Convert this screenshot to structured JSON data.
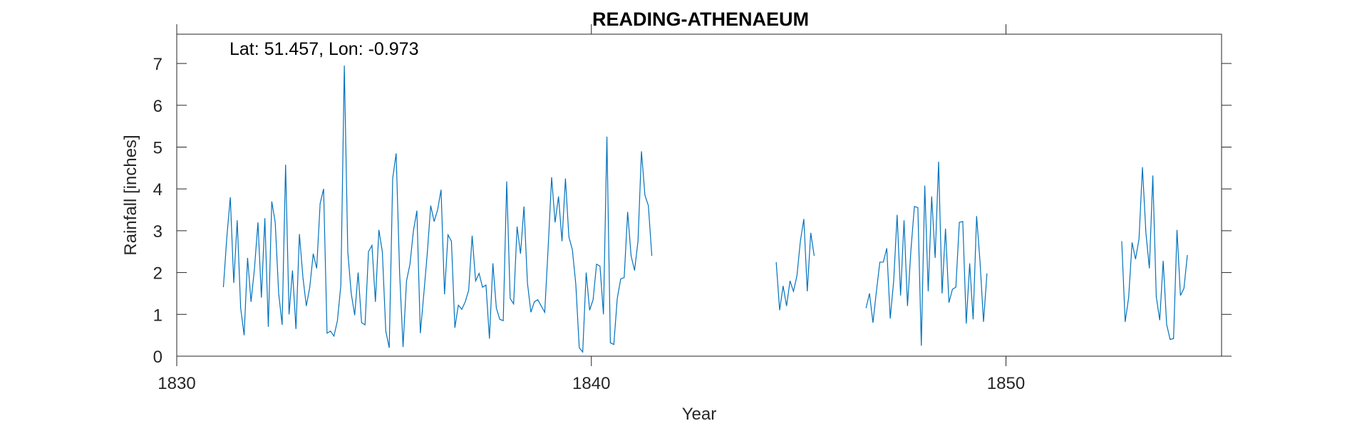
{
  "chart_data": {
    "type": "line",
    "title": "READING-ATHENAEUM",
    "annotation": "Lat: 51.457, Lon: -0.973",
    "xlabel": "Year",
    "ylabel": "Rainfall [inches]",
    "xlim": [
      1830,
      1855.2
    ],
    "ylim": [
      0,
      7.7
    ],
    "xticks": [
      1830,
      1840,
      1850
    ],
    "xtick_labels": [
      "1830",
      "1840",
      "1850"
    ],
    "yticks": [
      0,
      1,
      2,
      3,
      4,
      5,
      6,
      7
    ],
    "ytick_labels": [
      "0",
      "1",
      "2",
      "3",
      "4",
      "5",
      "6",
      "7"
    ],
    "grid": false,
    "line_color": "#0072BD",
    "series": [
      {
        "segments": [
          {
            "start": 1831.125,
            "values": [
              1.65,
              2.85,
              3.8,
              1.75,
              3.25,
              1.15,
              0.5,
              2.35,
              1.3,
              2.1,
              3.2,
              1.4,
              3.3,
              0.7,
              3.7,
              3.2,
              1.5,
              0.75,
              4.58,
              1.0,
              2.05,
              0.65,
              2.92,
              1.9,
              1.2,
              1.65,
              2.45,
              2.1,
              3.65,
              4.0,
              0.55,
              0.6,
              0.48,
              0.85,
              1.7,
              6.95,
              2.5,
              1.5,
              0.98,
              2.0,
              0.8,
              0.75,
              2.5,
              2.65,
              1.3,
              3.02,
              2.5,
              0.6,
              0.2,
              4.25,
              4.85,
              2.0,
              0.22,
              1.8,
              2.2,
              3.0,
              3.48,
              0.55,
              1.48,
              2.45,
              3.6,
              3.22,
              3.5,
              3.98,
              1.48,
              2.9,
              2.75,
              0.68,
              1.22,
              1.12,
              1.3,
              1.58,
              2.88,
              1.8,
              1.98,
              1.65,
              1.7,
              0.42,
              2.22,
              1.15,
              0.88,
              0.85,
              4.18,
              1.38,
              1.25,
              3.1,
              2.45,
              3.58,
              1.75,
              1.05,
              1.3,
              1.35,
              1.2,
              1.05,
              2.6,
              4.28,
              3.2,
              3.82,
              2.75,
              4.25,
              2.85,
              2.55,
              1.72,
              0.2,
              0.1,
              2.0,
              1.1,
              1.35,
              2.2,
              2.15,
              1.0,
              5.25,
              0.32,
              0.28,
              1.38,
              1.85,
              1.88,
              3.45,
              2.4,
              2.05,
              2.75,
              4.9,
              3.85,
              3.6,
              2.4
            ]
          },
          {
            "start": 1844.458,
            "values": [
              2.25,
              1.1,
              1.68,
              1.2,
              1.8,
              1.55,
              1.92,
              2.75,
              3.28,
              1.55,
              2.95,
              2.4
            ]
          },
          {
            "start": 1846.625,
            "values": [
              1.15,
              1.5,
              0.8,
              1.55,
              2.25,
              2.25,
              2.58,
              0.9,
              1.8,
              3.38,
              1.45,
              3.25,
              1.2,
              2.55,
              3.58,
              3.55,
              0.25,
              4.08,
              1.55,
              3.82,
              2.35,
              4.65,
              1.5,
              3.05,
              1.28,
              1.6,
              1.65,
              3.2,
              3.22,
              0.78,
              2.22,
              0.88,
              3.35,
              2.25,
              0.82,
              1.98
            ]
          },
          {
            "start": 1852.792,
            "values": [
              2.75,
              0.82,
              1.4,
              2.72,
              2.32,
              2.8,
              4.52,
              2.95,
              2.1,
              4.32,
              1.42,
              0.86,
              2.28,
              0.76,
              0.4,
              0.42,
              3.02,
              1.45,
              1.62,
              2.42
            ]
          }
        ]
      }
    ]
  }
}
